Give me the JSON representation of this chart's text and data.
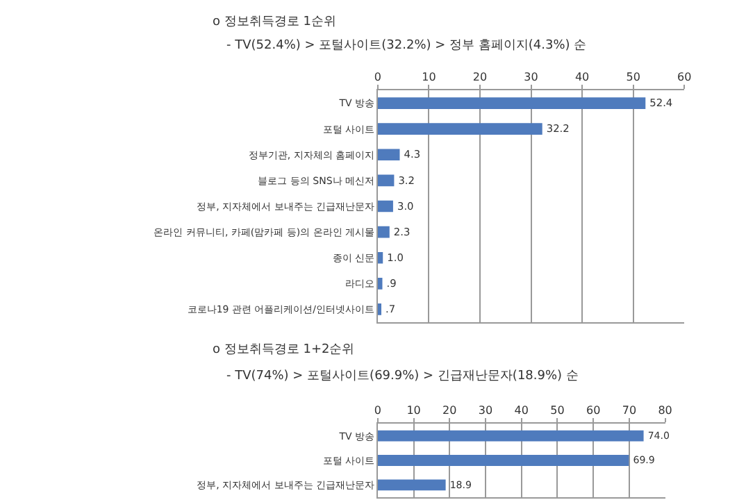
{
  "chart_data": [
    {
      "type": "bar",
      "orientation": "horizontal",
      "title": "o 정보취득경로 1순위",
      "subtitle": "- TV(52.4%) > 포털사이트(32.2%) > 정부 홈페이지(4.3%) 순",
      "categories": [
        "TV 방송",
        "포털 사이트",
        "정부기관, 지자체의 홈페이지",
        "블로그 등의 SNS나 메신저",
        "정부, 지자체에서 보내주는 긴급재난문자",
        "온라인 커뮤니티, 카페(맘카페 등)의 온라인 게시물",
        "종이 신문",
        "라디오",
        "코로나19 관련 어플리케이션/인터넷사이트"
      ],
      "values": [
        52.4,
        32.2,
        4.3,
        3.2,
        3.0,
        2.3,
        1.0,
        0.9,
        0.7
      ],
      "value_labels": [
        "52.4",
        "32.2",
        "4.3",
        "3.2",
        "3.0",
        "2.3",
        "1.0",
        ".9",
        ".7"
      ],
      "color": "#4f7bbd",
      "xlim": [
        0,
        60
      ],
      "xticks": [
        0,
        10,
        20,
        30,
        40,
        50,
        60
      ],
      "grid": "x"
    },
    {
      "type": "bar",
      "orientation": "horizontal",
      "title": "o 정보취득경로 1+2순위",
      "subtitle": "- TV(74%) > 포털사이트(69.9%) > 긴급재난문자(18.9%) 순",
      "categories": [
        "TV 방송",
        "포털 사이트",
        "정부, 지자체에서 보내주는 긴급재난문자"
      ],
      "values": [
        74.0,
        69.9,
        18.9
      ],
      "value_labels": [
        "74.0",
        "69.9",
        "18.9"
      ],
      "color": "#4f7bbd",
      "xlim": [
        0,
        80
      ],
      "xticks": [
        0,
        10,
        20,
        30,
        40,
        50,
        60,
        70,
        80
      ],
      "grid": "x"
    }
  ]
}
